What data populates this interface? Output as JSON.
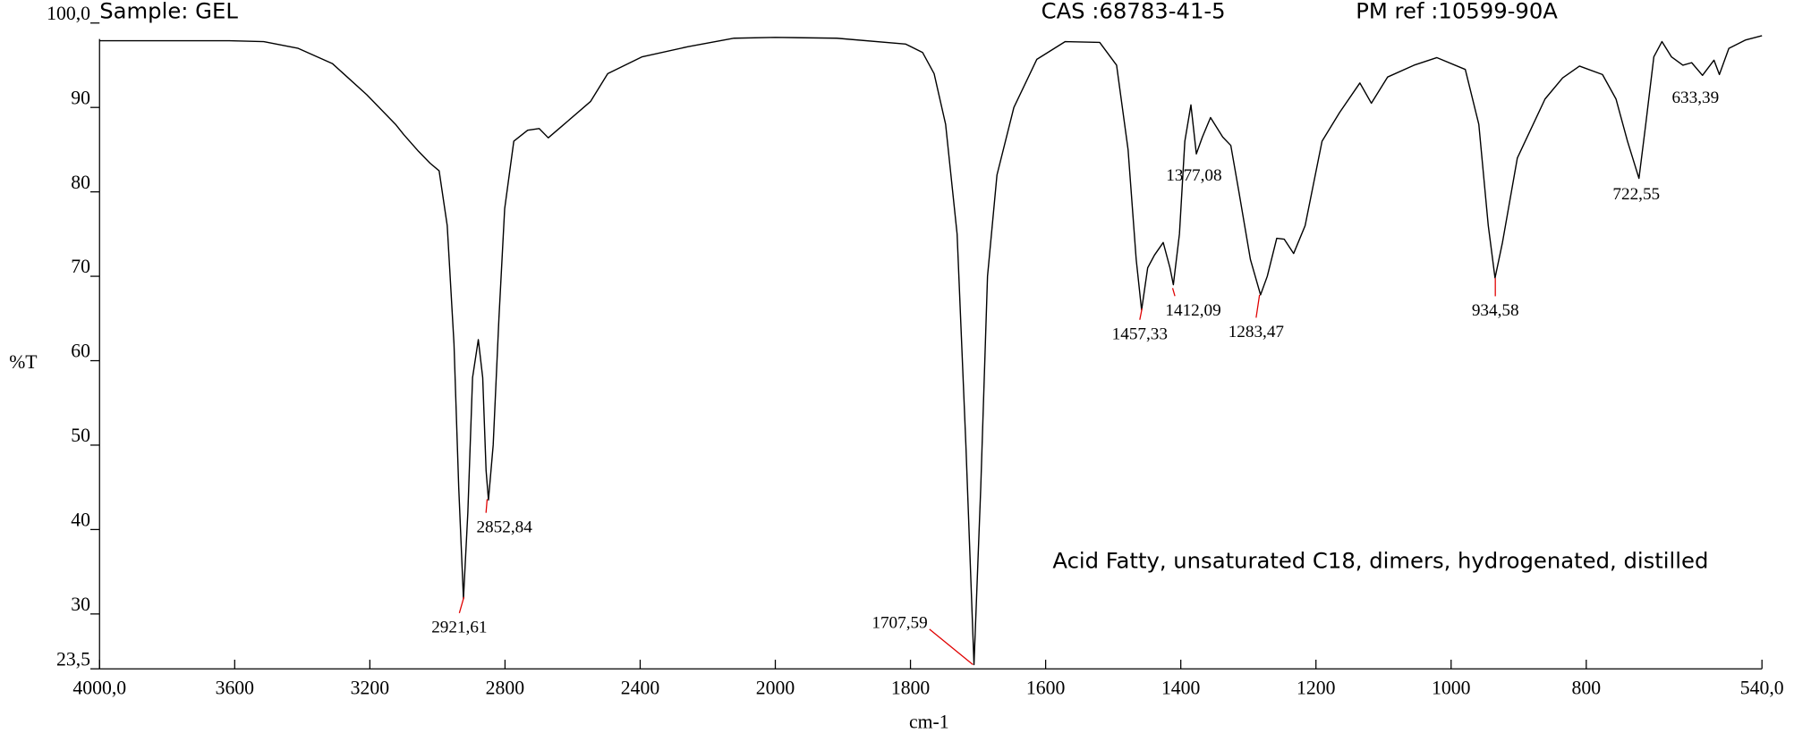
{
  "chart_data": {
    "type": "line",
    "title": "Sample: GEL",
    "cas": "CAS :68783-41-5",
    "ref": "PM ref :10599-90A",
    "note": "Acid Fatty, unsaturated C18, dimers, hydrogenated, distilled",
    "x_label": "cm-1",
    "y_label": "%T",
    "xlim": [
      4000,
      540
    ],
    "xscale_break": 2000,
    "ylim": [
      23.5,
      100
    ],
    "xticks": [
      {
        "value": 4000,
        "label": "4000,0"
      },
      3600,
      3200,
      2800,
      2400,
      2000,
      1800,
      1600,
      1400,
      1200,
      1000,
      800,
      {
        "value": 540,
        "label": "540,0"
      }
    ],
    "yticks": [
      {
        "value": 23.5,
        "label": "23,5"
      },
      30,
      40,
      50,
      60,
      70,
      80,
      90,
      {
        "value": 100,
        "label": "100,0"
      }
    ],
    "x": [
      4000,
      3616,
      3514,
      3412,
      3311,
      3209,
      3124,
      3100,
      3056,
      3022,
      2995,
      2971,
      2951,
      2937,
      2923,
      2910,
      2896,
      2879,
      2866,
      2856,
      2849,
      2835,
      2818,
      2801,
      2774,
      2733,
      2699,
      2672,
      2631,
      2547,
      2496,
      2394,
      2258,
      2122,
      2000,
      1909,
      1807,
      1782,
      1765,
      1748,
      1731,
      1718,
      1706,
      1696,
      1686,
      1672,
      1647,
      1613,
      1571,
      1520,
      1495,
      1478,
      1466,
      1458,
      1449,
      1439,
      1426,
      1416,
      1411,
      1402,
      1394,
      1385,
      1377,
      1368,
      1356,
      1338,
      1326,
      1314,
      1297,
      1282,
      1272,
      1258,
      1247,
      1233,
      1216,
      1191,
      1165,
      1135,
      1118,
      1094,
      1055,
      1021,
      979,
      959,
      945,
      935,
      924,
      902,
      861,
      835,
      810,
      776,
      756,
      739,
      722,
      712,
      700,
      688,
      674,
      657,
      644,
      628,
      611,
      603,
      589,
      564,
      540
    ],
    "series": [
      {
        "color": "#000000",
        "values": [
          97.9,
          97.9,
          97.8,
          97.0,
          95.2,
          91.5,
          88.0,
          86.8,
          84.8,
          83.4,
          82.5,
          76,
          62,
          45,
          31.8,
          42,
          58,
          62.5,
          58,
          47,
          43.5,
          50,
          65,
          78,
          86,
          87.3,
          87.5,
          86.4,
          87.8,
          90.7,
          94,
          96,
          97.2,
          98.2,
          98.3,
          98.2,
          97.5,
          96.5,
          94,
          88,
          75,
          50,
          24.0,
          45,
          70,
          82,
          90,
          95.7,
          97.8,
          97.7,
          95,
          85,
          72,
          66,
          71,
          72.5,
          74.0,
          71,
          69,
          75,
          86,
          90.3,
          84.5,
          86.5,
          88.8,
          86.5,
          85.5,
          80,
          72,
          67.8,
          70,
          74.5,
          74.4,
          72.7,
          76,
          86,
          89.4,
          92.9,
          90.5,
          93.6,
          95,
          95.9,
          94.5,
          88,
          76,
          69.8,
          74,
          84,
          91,
          93.5,
          94.9,
          93.9,
          91,
          86,
          81.6,
          88,
          96,
          97.8,
          96,
          95,
          95.3,
          93.8,
          95.6,
          93.9,
          97,
          98,
          98.5
        ]
      }
    ],
    "annotations": [
      {
        "x": 2921.61,
        "y": 32.0,
        "label": "2921,61"
      },
      {
        "x": 2852.84,
        "y": 43.6,
        "label": "2852,84"
      },
      {
        "x": 1707.59,
        "y": 24.0,
        "label": "1707,59"
      },
      {
        "x": 1457.33,
        "y": 66.2,
        "label": "1457,33"
      },
      {
        "x": 1412.09,
        "y": 68.6,
        "label": "1412,09"
      },
      {
        "x": 1377.08,
        "y": 84.2,
        "label": "1377,08"
      },
      {
        "x": 1283.47,
        "y": 67.8,
        "label": "1283,47"
      },
      {
        "x": 934.58,
        "y": 69.8,
        "label": "934,58"
      },
      {
        "x": 722.55,
        "y": 81.4,
        "label": "722,55"
      },
      {
        "x": 633.39,
        "y": 93.8,
        "label": "633,39"
      }
    ]
  }
}
